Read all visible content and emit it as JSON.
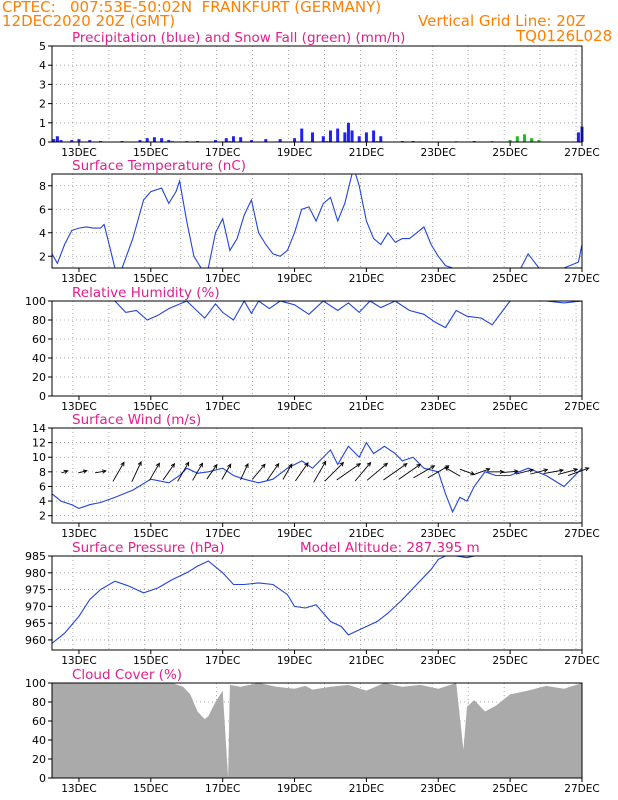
{
  "header": {
    "line1_left": "CPTEC:   007:53E-50:02N  FRANKFURT (GERMANY)",
    "line2_left": "12DEC2020 20Z (GMT)",
    "line2_right": "Vertical Grid Line: 20Z",
    "line3_right": "TQ0126L028"
  },
  "x_tick_labels": [
    "13DEC",
    "15DEC",
    "17DEC",
    "19DEC",
    "21DEC",
    "23DEC",
    "25DEC",
    "27DEC"
  ],
  "colors": {
    "precip": "#2222ee",
    "snow": "#22bb22",
    "line": "#2244dd",
    "cloud": "#aaaaaa",
    "title": "#e0208c",
    "header": "#ff7f00"
  },
  "chart_data": [
    {
      "id": "precip",
      "type": "bar",
      "title": "Precipitation (blue) and Snow Fall (green) (mm/h)",
      "ylim": [
        0,
        5
      ],
      "yticks": [
        0,
        1,
        2,
        3,
        4,
        5
      ],
      "x_unit": "day of December 2020",
      "xlim": [
        12.25,
        27
      ],
      "series": [
        {
          "name": "Precipitation (blue)",
          "x": [
            12.3,
            12.4,
            12.5,
            12.8,
            13.0,
            13.3,
            13.6,
            14.2,
            14.7,
            14.9,
            15.1,
            15.3,
            15.5,
            16.0,
            16.3,
            16.8,
            17.1,
            17.3,
            17.5,
            17.8,
            18.2,
            18.6,
            19.0,
            19.2,
            19.5,
            19.8,
            20.0,
            20.2,
            20.4,
            20.5,
            20.6,
            20.8,
            21.0,
            21.2,
            21.4,
            22.0,
            22.3,
            24.0,
            25.6,
            26.9,
            27.0
          ],
          "values": [
            0.15,
            0.3,
            0.1,
            0.1,
            0.15,
            0.1,
            0.05,
            0.05,
            0.1,
            0.2,
            0.25,
            0.2,
            0.1,
            0.05,
            0.05,
            0.1,
            0.2,
            0.3,
            0.25,
            0.1,
            0.15,
            0.15,
            0.2,
            0.7,
            0.5,
            0.3,
            0.6,
            0.7,
            0.5,
            1.0,
            0.6,
            0.3,
            0.5,
            0.6,
            0.3,
            0.05,
            0.05,
            0.05,
            0.15,
            0.5,
            0.8
          ]
        },
        {
          "name": "Snow Fall (green)",
          "x": [
            15.6,
            16.0,
            17.2,
            18.5,
            19.9,
            21.3,
            22.5,
            23.5,
            24.5,
            25.0,
            25.2,
            25.4,
            25.6,
            25.8
          ],
          "values": [
            0.05,
            0.05,
            0.05,
            0.03,
            0.05,
            0.05,
            0.03,
            0.04,
            0.05,
            0.1,
            0.3,
            0.4,
            0.2,
            0.1
          ]
        }
      ]
    },
    {
      "id": "temp",
      "type": "line",
      "title": "Surface Temperature (nC)",
      "ylim": [
        1,
        9
      ],
      "yticks": [
        2,
        4,
        6,
        8
      ],
      "xlim": [
        12.25,
        27
      ],
      "series": [
        {
          "name": "Surface Temperature",
          "x": [
            12.25,
            12.4,
            12.6,
            12.8,
            13.0,
            13.2,
            13.4,
            13.6,
            13.7,
            13.8,
            14.0,
            14.2,
            14.5,
            14.8,
            15.0,
            15.3,
            15.5,
            15.7,
            15.8,
            16.0,
            16.2,
            16.4,
            16.6,
            16.8,
            17.0,
            17.2,
            17.4,
            17.6,
            17.8,
            18.0,
            18.2,
            18.4,
            18.6,
            18.8,
            19.0,
            19.2,
            19.4,
            19.6,
            19.8,
            20.0,
            20.2,
            20.4,
            20.6,
            20.7,
            20.8,
            21.0,
            21.2,
            21.4,
            21.6,
            21.8,
            22.0,
            22.2,
            22.4,
            22.6,
            22.8,
            23.0,
            23.2,
            23.4,
            23.6,
            23.8,
            24.0,
            24.5,
            25.0,
            25.3,
            25.5,
            25.6,
            25.8,
            26.0,
            26.5,
            26.9,
            27.0
          ],
          "values": [
            2.2,
            1.4,
            3.0,
            4.2,
            4.4,
            4.5,
            4.4,
            4.4,
            4.7,
            3.5,
            1.0,
            1.0,
            3.5,
            6.8,
            7.5,
            7.8,
            6.5,
            7.5,
            8.4,
            5.0,
            2.0,
            1.0,
            1.0,
            4.0,
            5.2,
            2.5,
            3.5,
            5.5,
            6.8,
            4.0,
            3.0,
            2.2,
            2.0,
            2.5,
            4.0,
            6.0,
            6.2,
            5.0,
            6.5,
            7.0,
            5.0,
            6.5,
            9.2,
            9.0,
            8.0,
            5.0,
            3.5,
            3.0,
            4.0,
            3.2,
            3.5,
            3.5,
            4.0,
            4.5,
            3.0,
            2.0,
            1.2,
            1.0,
            1.0,
            1.0,
            0.5,
            0.5,
            0.5,
            1.0,
            2.2,
            1.8,
            1.0,
            0.5,
            0.5,
            1.5,
            3.0
          ]
        }
      ]
    },
    {
      "id": "rh",
      "type": "line",
      "title": "Relative Humidity (%)",
      "ylim": [
        0,
        100
      ],
      "yticks": [
        0,
        20,
        40,
        60,
        80,
        100
      ],
      "xlim": [
        12.25,
        27
      ],
      "series": [
        {
          "name": "Relative Humidity",
          "x": [
            12.25,
            13.0,
            14.0,
            14.3,
            14.6,
            14.9,
            15.2,
            15.5,
            16.0,
            16.5,
            16.8,
            17.0,
            17.3,
            17.6,
            17.8,
            18.0,
            18.3,
            18.6,
            19.0,
            19.4,
            19.8,
            20.2,
            20.5,
            20.8,
            21.1,
            21.4,
            21.8,
            22.2,
            22.6,
            22.9,
            23.2,
            23.5,
            23.8,
            24.2,
            24.5,
            24.8,
            25.0,
            25.5,
            26.0,
            26.5,
            27.0
          ],
          "values": [
            100,
            100,
            100,
            88,
            90,
            80,
            85,
            92,
            100,
            82,
            97,
            88,
            80,
            100,
            87,
            100,
            92,
            100,
            96,
            86,
            100,
            90,
            98,
            88,
            100,
            93,
            100,
            90,
            86,
            78,
            72,
            90,
            84,
            82,
            75,
            90,
            100,
            100,
            100,
            98,
            100
          ]
        }
      ]
    },
    {
      "id": "wind",
      "type": "line",
      "title": "Surface Wind (m/s)",
      "ylim": [
        1,
        14
      ],
      "yticks": [
        2,
        4,
        6,
        8,
        10,
        12,
        14
      ],
      "xlim": [
        12.25,
        27
      ],
      "series": [
        {
          "name": "Surface Wind",
          "x": [
            12.25,
            12.5,
            12.8,
            13.0,
            13.3,
            13.6,
            14.0,
            14.5,
            15.0,
            15.5,
            15.8,
            16.0,
            16.3,
            16.6,
            17.0,
            17.3,
            17.6,
            18.0,
            18.4,
            18.8,
            19.2,
            19.5,
            19.8,
            20.0,
            20.2,
            20.5,
            20.8,
            21.0,
            21.2,
            21.5,
            21.8,
            22.0,
            22.3,
            22.6,
            23.0,
            23.2,
            23.4,
            23.6,
            23.8,
            24.0,
            24.3,
            24.6,
            25.0,
            25.5,
            26.0,
            26.5,
            27.0
          ],
          "values": [
            5.0,
            4.0,
            3.5,
            3.0,
            3.5,
            3.8,
            4.5,
            5.5,
            7.0,
            6.5,
            7.5,
            8.5,
            7.8,
            8.0,
            8.5,
            7.5,
            7.0,
            6.5,
            7.0,
            8.5,
            9.5,
            8.5,
            10.0,
            11.0,
            9.0,
            11.5,
            10.0,
            12.0,
            10.5,
            11.5,
            10.5,
            9.5,
            10.0,
            8.5,
            8.0,
            5.0,
            2.5,
            4.5,
            4.0,
            6.0,
            8.0,
            7.5,
            7.5,
            8.5,
            7.5,
            6.0,
            8.5
          ]
        }
      ],
      "vector_times": [
        12.6,
        13.1,
        13.6,
        14.1,
        14.6,
        15.1,
        15.5,
        15.9,
        16.3,
        16.7,
        17.1,
        17.6,
        18.0,
        18.4,
        18.8,
        19.2,
        19.7,
        20.1,
        20.5,
        20.9,
        21.3,
        21.8,
        22.2,
        22.6,
        23.0,
        23.4,
        23.8,
        24.2,
        24.6,
        25.0,
        25.4,
        25.8,
        26.2,
        26.6,
        26.9
      ],
      "vector_directions_deg": [
        250,
        255,
        260,
        210,
        205,
        210,
        215,
        210,
        210,
        215,
        210,
        205,
        220,
        215,
        210,
        215,
        210,
        225,
        235,
        220,
        230,
        235,
        235,
        240,
        240,
        120,
        290,
        250,
        270,
        265,
        255,
        255,
        260,
        255,
        250
      ],
      "vector_speeds": [
        3,
        4,
        5,
        10,
        10,
        9,
        9,
        10,
        9,
        8,
        8,
        8,
        9,
        9,
        8,
        10,
        11,
        12,
        13,
        11,
        12,
        13,
        12,
        11,
        11,
        8,
        7,
        8,
        7,
        7,
        8,
        8,
        9,
        9,
        10
      ]
    },
    {
      "id": "pres",
      "type": "line",
      "title": "Surface Pressure (hPa)",
      "annotation": "Model Altitude: 287.395 m",
      "ylim": [
        957,
        985
      ],
      "yticks": [
        960,
        965,
        970,
        975,
        980,
        985
      ],
      "xlim": [
        12.25,
        27
      ],
      "series": [
        {
          "name": "Surface Pressure",
          "x": [
            12.25,
            12.6,
            13.0,
            13.3,
            13.6,
            14.0,
            14.4,
            14.8,
            15.2,
            15.6,
            16.0,
            16.3,
            16.6,
            17.0,
            17.3,
            17.6,
            18.0,
            18.4,
            18.8,
            19.0,
            19.3,
            19.6,
            19.8,
            20.0,
            20.3,
            20.5,
            20.7,
            21.0,
            21.3,
            21.6,
            22.0,
            22.4,
            22.8,
            23.0,
            23.2,
            23.5,
            23.8,
            24.0
          ],
          "values": [
            959,
            962,
            967,
            972,
            975,
            977.5,
            976,
            974,
            975.5,
            978,
            980,
            982,
            983.5,
            980,
            976.5,
            976.5,
            977,
            976.5,
            973.5,
            970,
            969.5,
            970.5,
            968,
            965.5,
            964,
            961.5,
            962.5,
            964,
            965.5,
            968,
            972,
            976.5,
            981,
            984,
            985.5,
            986,
            984.5,
            986
          ]
        }
      ]
    },
    {
      "id": "cloud",
      "type": "area",
      "title": "Cloud Cover (%)",
      "ylim": [
        0,
        100
      ],
      "yticks": [
        0,
        20,
        40,
        60,
        80,
        100
      ],
      "xlim": [
        12.25,
        27
      ],
      "series": [
        {
          "name": "Cloud Cover",
          "x": [
            12.25,
            13.0,
            14.0,
            15.0,
            15.6,
            15.9,
            16.1,
            16.3,
            16.5,
            16.6,
            16.8,
            17.0,
            17.15,
            17.2,
            17.5,
            18.0,
            18.5,
            19.0,
            19.3,
            19.5,
            20.0,
            20.5,
            21.0,
            21.5,
            22.0,
            22.5,
            23.0,
            23.5,
            23.7,
            23.8,
            24.0,
            24.3,
            24.6,
            25.0,
            25.5,
            26.0,
            26.5,
            27.0
          ],
          "values": [
            100,
            100,
            100,
            100,
            100,
            96,
            88,
            70,
            62,
            65,
            80,
            92,
            0,
            98,
            96,
            100,
            96,
            94,
            97,
            93,
            96,
            98,
            92,
            100,
            96,
            98,
            94,
            100,
            30,
            75,
            82,
            70,
            76,
            88,
            92,
            97,
            94,
            100
          ]
        }
      ]
    }
  ]
}
